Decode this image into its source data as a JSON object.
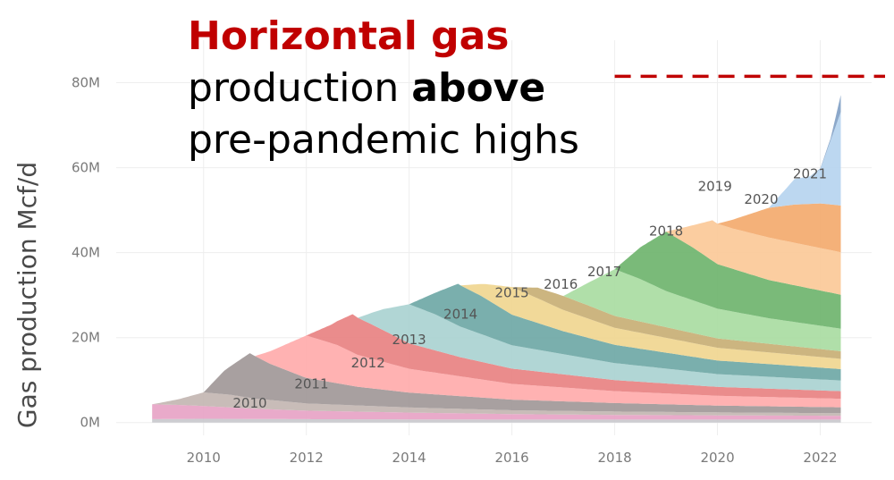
{
  "headline": {
    "red": "Horizontal gas",
    "line2_pre": "production ",
    "line2_bold": "above",
    "line3": "pre-pandemic highs"
  },
  "colors": {
    "highlight": "#c00000",
    "grid": "#eeeeee",
    "reference_line": "#c00000"
  },
  "chart_data": {
    "type": "area",
    "stacked": true,
    "ylabel": "Gas production Mcf/d",
    "xlabel": "",
    "x_range": [
      2008.3,
      2023.0
    ],
    "ylim": [
      -3,
      90
    ],
    "x_ticks": [
      {
        "value": 2010,
        "label": "2010"
      },
      {
        "value": 2012,
        "label": "2012"
      },
      {
        "value": 2014,
        "label": "2014"
      },
      {
        "value": 2016,
        "label": "2016"
      },
      {
        "value": 2018,
        "label": "2018"
      },
      {
        "value": 2020,
        "label": "2020"
      },
      {
        "value": 2022,
        "label": "2022"
      }
    ],
    "y_ticks": [
      {
        "value": 0,
        "label": "0M"
      },
      {
        "value": 20,
        "label": "20M"
      },
      {
        "value": 40,
        "label": "40M"
      },
      {
        "value": 60,
        "label": "60M"
      },
      {
        "value": 80,
        "label": "80M"
      }
    ],
    "reference_line": {
      "y": 81.5,
      "x_start": 2018.0,
      "style": "dashed"
    },
    "grid": true,
    "legend": "none",
    "series": [
      {
        "name": "",
        "color": "#c8c8cc",
        "points": [
          [
            2009.0,
            0.8
          ],
          [
            2010.0,
            0.9
          ],
          [
            2012.0,
            0.8
          ],
          [
            2016.0,
            0.7
          ],
          [
            2020.0,
            0.7
          ],
          [
            2022.4,
            0.7
          ]
        ]
      },
      {
        "name": "",
        "color": "#e7a1c4",
        "points": [
          [
            2009.0,
            3.5
          ],
          [
            2009.5,
            3.3
          ],
          [
            2010.0,
            3.0
          ],
          [
            2011.0,
            2.4
          ],
          [
            2012.0,
            2.0
          ],
          [
            2014.0,
            1.6
          ],
          [
            2016.0,
            1.3
          ],
          [
            2018.0,
            1.1
          ],
          [
            2020.0,
            1.0
          ],
          [
            2022.4,
            0.9
          ]
        ]
      },
      {
        "name": "2010",
        "color": "#c2b5b0",
        "points": [
          [
            2009.0,
            0.0
          ],
          [
            2009.5,
            1.3
          ],
          [
            2010.0,
            3.2
          ],
          [
            2010.5,
            3.0
          ],
          [
            2011.0,
            2.4
          ],
          [
            2012.0,
            1.7
          ],
          [
            2014.0,
            1.2
          ],
          [
            2016.0,
            0.9
          ],
          [
            2018.0,
            0.8
          ],
          [
            2020.0,
            0.7
          ],
          [
            2022.4,
            0.6
          ]
        ]
      },
      {
        "name": "2010",
        "color": "#9e9696",
        "points": [
          [
            2010.0,
            0.0
          ],
          [
            2010.4,
            5.5
          ],
          [
            2010.9,
            10.5
          ],
          [
            2011.3,
            8.5
          ],
          [
            2012.0,
            6.0
          ],
          [
            2013.0,
            4.4
          ],
          [
            2014.0,
            3.5
          ],
          [
            2016.0,
            2.5
          ],
          [
            2018.0,
            2.0
          ],
          [
            2020.0,
            1.6
          ],
          [
            2022.4,
            1.4
          ]
        ]
      },
      {
        "name": "2011",
        "color": "#ffaaaa",
        "points": [
          [
            2011.0,
            0.0
          ],
          [
            2011.5,
            5.0
          ],
          [
            2012.0,
            10.0
          ],
          [
            2012.6,
            9.0
          ],
          [
            2013.0,
            7.5
          ],
          [
            2014.0,
            5.6
          ],
          [
            2016.0,
            3.7
          ],
          [
            2018.0,
            2.8
          ],
          [
            2020.0,
            2.3
          ],
          [
            2022.4,
            2.0
          ]
        ]
      },
      {
        "name": "2012",
        "color": "#e88080",
        "points": [
          [
            2012.0,
            0.0
          ],
          [
            2012.5,
            4.5
          ],
          [
            2012.9,
            9.0
          ],
          [
            2013.3,
            8.0
          ],
          [
            2014.0,
            6.0
          ],
          [
            2015.0,
            4.5
          ],
          [
            2016.0,
            3.6
          ],
          [
            2018.0,
            2.6
          ],
          [
            2020.0,
            2.1
          ],
          [
            2022.4,
            1.8
          ]
        ]
      },
      {
        "name": "2013",
        "color": "#a9d2d0",
        "points": [
          [
            2013.0,
            0.0
          ],
          [
            2013.5,
            5.0
          ],
          [
            2014.0,
            9.2
          ],
          [
            2014.5,
            8.5
          ],
          [
            2015.0,
            7.2
          ],
          [
            2016.0,
            5.5
          ],
          [
            2018.0,
            4.0
          ],
          [
            2020.0,
            3.0
          ],
          [
            2022.4,
            2.5
          ]
        ]
      },
      {
        "name": "2014",
        "color": "#6ca6a4",
        "points": [
          [
            2014.0,
            0.0
          ],
          [
            2014.5,
            5.0
          ],
          [
            2014.95,
            9.8
          ],
          [
            2015.4,
            9.0
          ],
          [
            2016.0,
            7.2
          ],
          [
            2017.0,
            5.4
          ],
          [
            2018.0,
            4.3
          ],
          [
            2020.0,
            3.2
          ],
          [
            2022.4,
            2.7
          ]
        ]
      },
      {
        "name": "2015",
        "color": "#f0d58e",
        "points": [
          [
            2015.0,
            0.0
          ],
          [
            2015.5,
            3.5
          ],
          [
            2016.0,
            6.5
          ],
          [
            2016.5,
            5.8
          ],
          [
            2017.0,
            5.0
          ],
          [
            2018.0,
            4.0
          ],
          [
            2020.0,
            3.0
          ],
          [
            2022.4,
            2.4
          ]
        ]
      },
      {
        "name": "2016",
        "color": "#c7ad72",
        "points": [
          [
            2016.0,
            0.0
          ],
          [
            2016.5,
            2.5
          ],
          [
            2017.0,
            3.3
          ],
          [
            2017.5,
            3.1
          ],
          [
            2018.0,
            2.8
          ],
          [
            2020.0,
            2.2
          ],
          [
            2022.4,
            1.8
          ]
        ]
      },
      {
        "name": "2017",
        "color": "#a7dca0",
        "points": [
          [
            2017.0,
            0.0
          ],
          [
            2017.5,
            5.5
          ],
          [
            2018.0,
            11.0
          ],
          [
            2018.5,
            10.0
          ],
          [
            2019.0,
            8.5
          ],
          [
            2020.0,
            7.0
          ],
          [
            2021.0,
            6.0
          ],
          [
            2022.4,
            5.3
          ]
        ]
      },
      {
        "name": "2018",
        "color": "#6cb36a",
        "points": [
          [
            2018.0,
            0.0
          ],
          [
            2018.5,
            7.5
          ],
          [
            2019.0,
            14.0
          ],
          [
            2019.5,
            12.5
          ],
          [
            2020.0,
            10.5
          ],
          [
            2021.0,
            9.0
          ],
          [
            2022.4,
            8.0
          ]
        ]
      },
      {
        "name": "2019",
        "color": "#fbc896",
        "points": [
          [
            2019.0,
            0.0
          ],
          [
            2019.5,
            5.0
          ],
          [
            2019.9,
            9.5
          ],
          [
            2020.3,
            9.5
          ],
          [
            2021.0,
            10.0
          ],
          [
            2022.0,
            10.0
          ],
          [
            2022.4,
            10.0
          ]
        ]
      },
      {
        "name": "2020",
        "color": "#f3a86a",
        "points": [
          [
            2020.0,
            0.0
          ],
          [
            2020.5,
            3.5
          ],
          [
            2021.0,
            7.0
          ],
          [
            2021.5,
            9.0
          ],
          [
            2022.0,
            10.5
          ],
          [
            2022.4,
            11.0
          ]
        ]
      },
      {
        "name": "2021",
        "color": "#b5d3ee",
        "points": [
          [
            2021.0,
            0.0
          ],
          [
            2021.5,
            6.0
          ],
          [
            2021.8,
            6.5
          ],
          [
            2022.0,
            8.0
          ],
          [
            2022.4,
            22.0
          ]
        ]
      },
      {
        "name": "",
        "color": "#7f9fc4",
        "points": [
          [
            2021.6,
            0.0
          ],
          [
            2021.8,
            0.0
          ],
          [
            2022.0,
            0.2
          ],
          [
            2022.2,
            0.5
          ],
          [
            2022.4,
            4.0
          ]
        ]
      }
    ],
    "labels": [
      {
        "text": "2010",
        "x": 2010.9,
        "y": 3.5
      },
      {
        "text": "2011",
        "x": 2012.1,
        "y": 8.0
      },
      {
        "text": "2012",
        "x": 2013.2,
        "y": 13.0
      },
      {
        "text": "2013",
        "x": 2014.0,
        "y": 18.5
      },
      {
        "text": "2014",
        "x": 2015.0,
        "y": 24.5
      },
      {
        "text": "2015",
        "x": 2016.0,
        "y": 29.5
      },
      {
        "text": "2016",
        "x": 2016.95,
        "y": 31.5
      },
      {
        "text": "2017",
        "x": 2017.8,
        "y": 34.5
      },
      {
        "text": "2018",
        "x": 2019.0,
        "y": 44.0
      },
      {
        "text": "2019",
        "x": 2019.95,
        "y": 54.5
      },
      {
        "text": "2020",
        "x": 2020.85,
        "y": 51.5
      },
      {
        "text": "2021",
        "x": 2021.8,
        "y": 57.5
      }
    ]
  }
}
